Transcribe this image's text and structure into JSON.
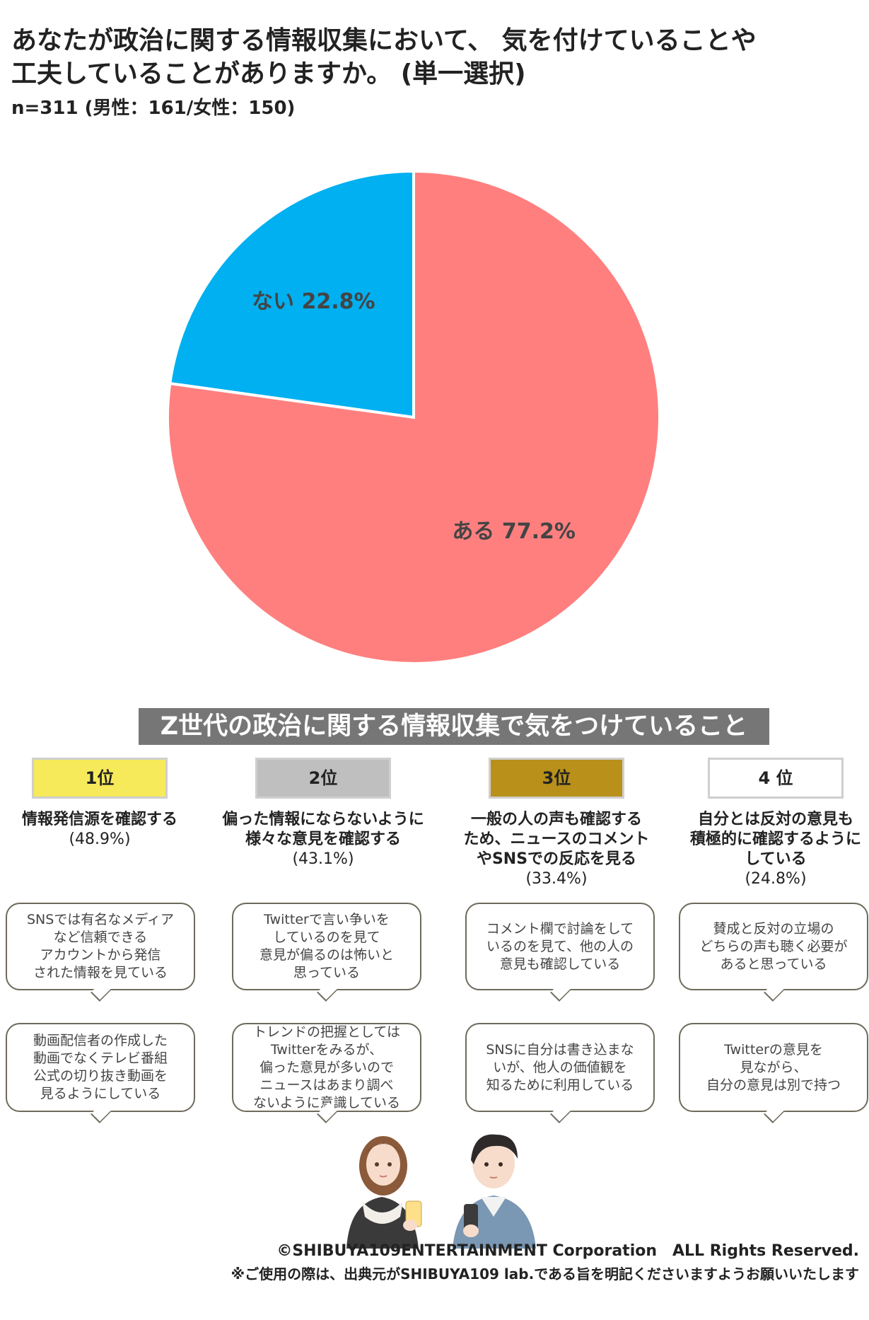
{
  "title_line1": "あなたが政治に関する情報収集において、 気を付けていることや",
  "title_line2": "工夫していることがありますか。 (単一選択)",
  "sample": "n=311 (男性：161/女性：150)",
  "chart_data": {
    "type": "pie",
    "categories": [
      "ない",
      "ある"
    ],
    "values": [
      22.8,
      77.2
    ],
    "value_labels": [
      "22.8%",
      "77.2%"
    ],
    "colors": [
      "#00b0f0",
      "#ff7f7f"
    ],
    "title": "あなたが政治に関する情報収集において、 気を付けていることや工夫していることがありますか。 (単一選択)"
  },
  "banner": "Z世代の政治に関する情報収集で気をつけていること",
  "rankings": [
    {
      "rank": "1位",
      "badge_color": "#f6ea5a",
      "title_lines": [
        "情報発信源を確認する"
      ],
      "pct": "(48.9%)",
      "comments": [
        [
          "SNSでは有名なメディア",
          "など信頼できる",
          "アカウントから発信",
          "された情報を見ている"
        ],
        [
          "動画配信者の作成した",
          "動画でなくテレビ番組",
          "公式の切り抜き動画を",
          "見るようにしている"
        ]
      ]
    },
    {
      "rank": "2位",
      "badge_color": "#bfbfbf",
      "title_lines": [
        "偏った情報にならないように",
        "様々な意見を確認する"
      ],
      "pct": "(43.1%)",
      "comments": [
        [
          "Twitterで言い争いを",
          "しているのを見て",
          "意見が偏るのは怖いと",
          "思っている"
        ],
        [
          "トレンドの把握としては",
          "Twitterをみるが、",
          "偏った意見が多いので",
          "ニュースはあまり調べ",
          "ないように意識している"
        ]
      ]
    },
    {
      "rank": "3位",
      "badge_color": "#b8901a",
      "title_lines": [
        "一般の人の声も確認する",
        "ため、ニュースのコメント",
        "やSNSでの反応を見る"
      ],
      "pct": "(33.4%)",
      "comments": [
        [
          "コメント欄で討論をして",
          "いるのを見て、他の人の",
          "意見も確認している"
        ],
        [
          "SNSに自分は書き込まな",
          "いが、他人の価値観を",
          "知るために利用している"
        ]
      ]
    },
    {
      "rank": "4 位",
      "badge_color": "#ffffff",
      "title_lines": [
        "自分とは反対の意見も",
        "積極的に確認するように",
        "している"
      ],
      "pct": "(24.8%)",
      "comments": [
        [
          "賛成と反対の立場の",
          "どちらの声も聴く必要が",
          "あると思っている"
        ],
        [
          "Twitterの意見を",
          "見ながら、",
          "自分の意見は別で持つ"
        ]
      ]
    }
  ],
  "copyright": "©SHIBUYA109ENTERTAINMENT Corporation　ALL Rights Reserved.",
  "notice": "※ご使用の際は、出典元がSHIBUYA109 lab.である旨を明記くださいますようお願いいたします"
}
